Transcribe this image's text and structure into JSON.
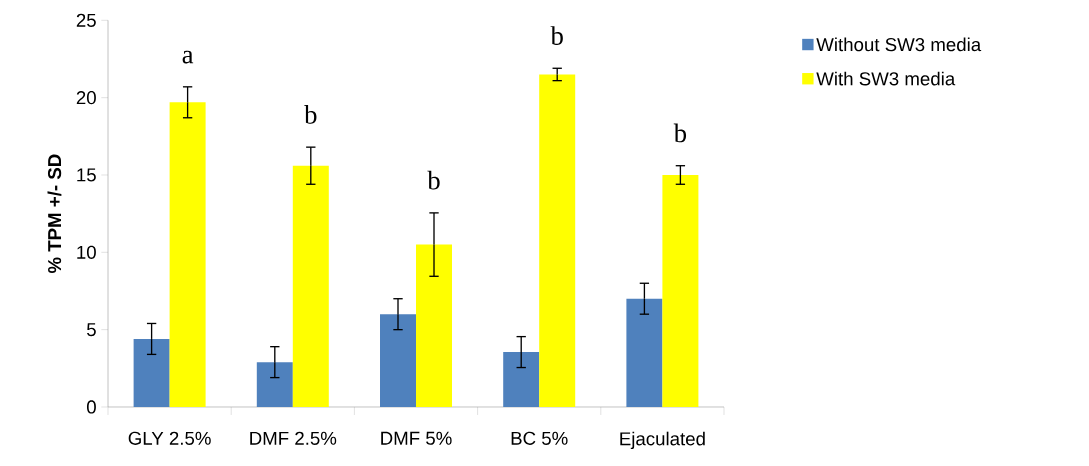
{
  "chart_data": {
    "type": "bar",
    "ylabel": "% TPM +/- SD",
    "categories": [
      "GLY 2.5%",
      "DMF 2.5%",
      "DMF 5%",
      "BC 5%",
      "Ejaculated"
    ],
    "series": [
      {
        "name": "Without SW3 media",
        "color": "#4f81bd",
        "values": [
          4.4,
          2.9,
          6.0,
          3.55,
          7.0
        ],
        "errors": [
          1.0,
          1.0,
          1.0,
          1.0,
          1.0
        ]
      },
      {
        "name": "With SW3 media",
        "color": "#ffff00",
        "values": [
          19.7,
          15.6,
          10.5,
          21.5,
          15.0
        ],
        "errors": [
          1.0,
          1.2,
          2.05,
          0.4,
          0.6
        ]
      }
    ],
    "ylim": [
      0,
      25
    ],
    "yticks": [
      0,
      5,
      10,
      15,
      20,
      25
    ],
    "grid": false,
    "legend": "right",
    "annotations": [
      "a",
      "b",
      "b",
      "b",
      "b"
    ]
  }
}
